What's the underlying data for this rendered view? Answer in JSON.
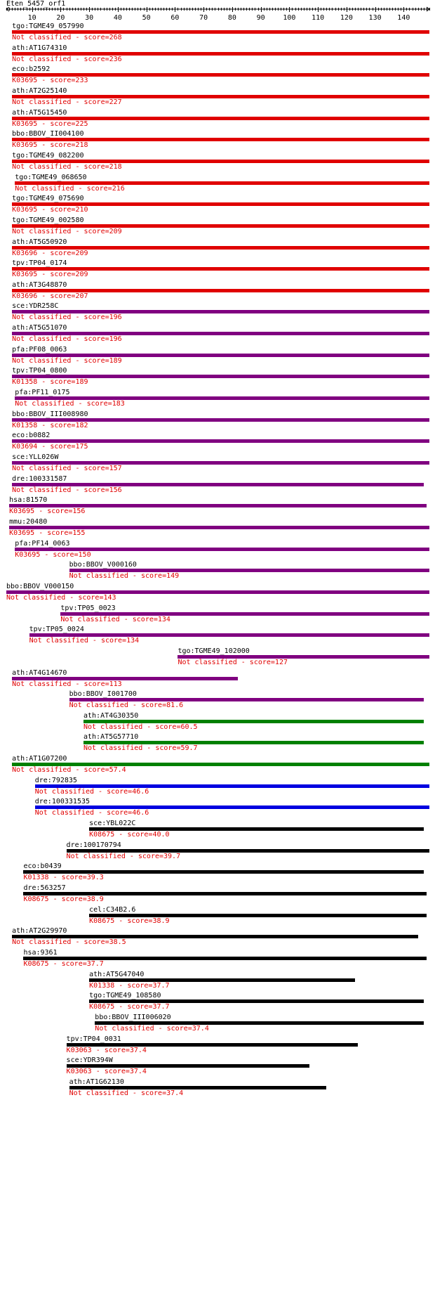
{
  "header": {
    "query_name": "Eten_5457_orf1",
    "axis_ticks": [
      "10",
      "20",
      "30",
      "40",
      "50",
      "60",
      "70",
      "80",
      "90",
      "100",
      "110",
      "120",
      "130",
      "140"
    ]
  },
  "colors": {
    "red": "#e00000",
    "purple": "#800080",
    "green": "#008000",
    "blue": "#0000e0",
    "black": "#000000",
    "label": "#e00000",
    "text": "#000000"
  },
  "hits": [
    {
      "name": "tgo:TGME49_057990",
      "label": "Not classified - score=268",
      "color": "red",
      "start": 3,
      "end": 149
    },
    {
      "name": "ath:AT1G74310",
      "label": "Not classified - score=236",
      "color": "red",
      "start": 3,
      "end": 149
    },
    {
      "name": "eco:b2592",
      "label": "K03695 - score=233",
      "color": "red",
      "start": 3,
      "end": 149
    },
    {
      "name": "ath:AT2G25140",
      "label": "Not classified - score=227",
      "color": "red",
      "start": 3,
      "end": 149
    },
    {
      "name": "ath:AT5G15450",
      "label": "K03695 - score=225",
      "color": "red",
      "start": 3,
      "end": 149
    },
    {
      "name": "bbo:BBOV_II004100",
      "label": "K03695 - score=218",
      "color": "red",
      "start": 3,
      "end": 149
    },
    {
      "name": "tgo:TGME49_082200",
      "label": "Not classified - score=218",
      "color": "red",
      "start": 3,
      "end": 149
    },
    {
      "name": "tgo:TGME49_068650",
      "label": "Not classified - score=216",
      "color": "red",
      "start": 4,
      "end": 149
    },
    {
      "name": "tgo:TGME49_075690",
      "label": "K03695 - score=210",
      "color": "red",
      "start": 3,
      "end": 149
    },
    {
      "name": "tgo:TGME49_002580",
      "label": "Not classified - score=209",
      "color": "red",
      "start": 3,
      "end": 149
    },
    {
      "name": "ath:AT5G50920",
      "label": "K03696 - score=209",
      "color": "red",
      "start": 3,
      "end": 149
    },
    {
      "name": "tpv:TP04_0174",
      "label": "K03695 - score=209",
      "color": "red",
      "start": 3,
      "end": 149
    },
    {
      "name": "ath:AT3G48870",
      "label": "K03696 - score=207",
      "color": "red",
      "start": 3,
      "end": 149
    },
    {
      "name": "sce:YDR258C",
      "label": "Not classified - score=196",
      "color": "purple",
      "start": 3,
      "end": 149
    },
    {
      "name": "ath:AT5G51070",
      "label": "Not classified - score=196",
      "color": "purple",
      "start": 3,
      "end": 149
    },
    {
      "name": "pfa:PF08_0063",
      "label": "Not classified - score=189",
      "color": "purple",
      "start": 3,
      "end": 149
    },
    {
      "name": "tpv:TP04_0800",
      "label": "K01358 - score=189",
      "color": "purple",
      "start": 3,
      "end": 149
    },
    {
      "name": "pfa:PF11_0175",
      "label": "Not classified - score=183",
      "color": "purple",
      "start": 4,
      "end": 149
    },
    {
      "name": "bbo:BBOV_III008980",
      "label": "K01358 - score=182",
      "color": "purple",
      "start": 3,
      "end": 149
    },
    {
      "name": "eco:b0882",
      "label": "K03694 - score=175",
      "color": "purple",
      "start": 3,
      "end": 149
    },
    {
      "name": "sce:YLL026W",
      "label": "Not classified - score=157",
      "color": "purple",
      "start": 3,
      "end": 149
    },
    {
      "name": "dre:100331587",
      "label": "Not classified - score=156",
      "color": "purple",
      "start": 3,
      "end": 147
    },
    {
      "name": "hsa:81570",
      "label": "K03695 - score=156",
      "color": "purple",
      "start": 2,
      "end": 148
    },
    {
      "name": "mmu:20480",
      "label": "K03695 - score=155",
      "color": "purple",
      "start": 2,
      "end": 149
    },
    {
      "name": "pfa:PF14_0063",
      "label": "K03695 - score=150",
      "color": "purple",
      "start": 4,
      "end": 149
    },
    {
      "name": "bbo:BBOV_V000160",
      "label": "Not classified - score=149",
      "color": "purple",
      "start": 23,
      "end": 149
    },
    {
      "name": "bbo:BBOV_V000150",
      "label": "Not classified - score=143",
      "color": "purple",
      "start": 1,
      "end": 149
    },
    {
      "name": "tpv:TP05_0023",
      "label": "Not classified - score=134",
      "color": "purple",
      "start": 20,
      "end": 149
    },
    {
      "name": "tpv:TP05_0024",
      "label": "Not classified - score=134",
      "color": "purple",
      "start": 9,
      "end": 149
    },
    {
      "name": "tgo:TGME49_102000",
      "label": "Not classified - score=127",
      "color": "purple",
      "start": 61,
      "end": 149
    },
    {
      "name": "ath:AT4G14670",
      "label": "Not classified - score=113",
      "color": "purple",
      "start": 3,
      "end": 82
    },
    {
      "name": "bbo:BBOV_I001700",
      "label": "Not classified - score=81.6",
      "color": "purple",
      "start": 23,
      "end": 147
    },
    {
      "name": "ath:AT4G30350",
      "label": "Not classified - score=60.5",
      "color": "green",
      "start": 28,
      "end": 147
    },
    {
      "name": "ath:AT5G57710",
      "label": "Not classified - score=59.7",
      "color": "green",
      "start": 28,
      "end": 147
    },
    {
      "name": "ath:AT1G07200",
      "label": "Not classified - score=57.4",
      "color": "green",
      "start": 3,
      "end": 149
    },
    {
      "name": "dre:792835",
      "label": "Not classified - score=46.6",
      "color": "blue",
      "start": 11,
      "end": 149
    },
    {
      "name": "dre:100331535",
      "label": "Not classified - score=46.6",
      "color": "blue",
      "start": 11,
      "end": 149
    },
    {
      "name": "sce:YBL022C",
      "label": "K08675 - score=40.0",
      "color": "black",
      "start": 30,
      "end": 147
    },
    {
      "name": "dre:100170794",
      "label": "Not classified - score=39.7",
      "color": "black",
      "start": 22,
      "end": 149
    },
    {
      "name": "eco:b0439",
      "label": "K01338 - score=39.3",
      "color": "black",
      "start": 7,
      "end": 147
    },
    {
      "name": "dre:563257",
      "label": "K08675 - score=38.9",
      "color": "black",
      "start": 7,
      "end": 148
    },
    {
      "name": "cel:C34B2.6",
      "label": "K08675 - score=38.9",
      "color": "black",
      "start": 30,
      "end": 148
    },
    {
      "name": "ath:AT2G29970",
      "label": "Not classified - score=38.5",
      "color": "black",
      "start": 3,
      "end": 145
    },
    {
      "name": "hsa:9361",
      "label": "K08675 - score=37.7",
      "color": "black",
      "start": 7,
      "end": 148
    },
    {
      "name": "ath:AT5G47040",
      "label": "K01338 - score=37.7",
      "color": "black",
      "start": 30,
      "end": 123
    },
    {
      "name": "tgo:TGME49_108580",
      "label": "K08675 - score=37.7",
      "color": "black",
      "start": 30,
      "end": 147
    },
    {
      "name": "bbo:BBOV_III006020",
      "label": "Not classified - score=37.4",
      "color": "black",
      "start": 32,
      "end": 147
    },
    {
      "name": "tpv:TP04_0031",
      "label": "K03063 - score=37.4",
      "color": "black",
      "start": 22,
      "end": 124
    },
    {
      "name": "sce:YDR394W",
      "label": "K03063 - score=37.4",
      "color": "black",
      "start": 22,
      "end": 107
    },
    {
      "name": "ath:AT1G62130",
      "label": "Not classified - score=37.4",
      "color": "black",
      "start": 23,
      "end": 113
    }
  ]
}
